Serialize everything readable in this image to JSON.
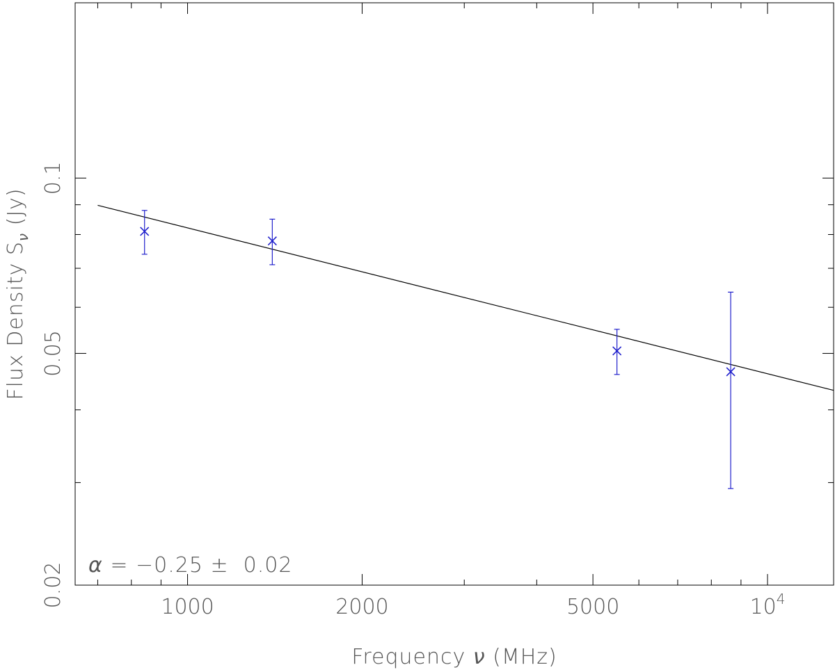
{
  "chart_data": {
    "type": "scatter",
    "xscale": "log",
    "yscale": "log",
    "xlim": [
      640,
      13000
    ],
    "ylim": [
      0.02,
      0.2
    ],
    "xlabel_text": "Frequency ",
    "xlabel_symbol": "ν",
    "xlabel_unit": " (MHz)",
    "ylabel_text": "Flux Density S",
    "ylabel_sub": "ν",
    "ylabel_unit": " (Jy)",
    "x_tick_labels": [
      {
        "value": 1000,
        "label": "1000"
      },
      {
        "value": 2000,
        "label": "2000"
      },
      {
        "value": 5000,
        "label": "5000"
      },
      {
        "value": 10000,
        "label": "10",
        "sup": "4"
      }
    ],
    "x_minor_ticks": [
      700,
      800,
      900,
      3000,
      4000,
      6000,
      7000,
      8000,
      9000
    ],
    "y_tick_labels": [
      {
        "value": 0.1,
        "label": "0.1"
      },
      {
        "value": 0.05,
        "label": "0.05"
      },
      {
        "value": 0.02,
        "label": "0.02"
      }
    ],
    "y_minor_ticks": [
      0.03,
      0.04,
      0.06,
      0.07,
      0.08,
      0.09
    ],
    "points": [
      {
        "x": 843,
        "y": 0.081,
        "err": 0.007
      },
      {
        "x": 1400,
        "y": 0.078,
        "err": 0.007
      },
      {
        "x": 5500,
        "y": 0.0505,
        "err": 0.0045
      },
      {
        "x": 8640,
        "y": 0.0465,
        "err": 0.0172
      }
    ],
    "fit": {
      "alpha": -0.25,
      "line": [
        {
          "x": 700,
          "y": 0.0898
        },
        {
          "x": 13000,
          "y": 0.0432
        }
      ]
    },
    "annotation": {
      "symbol": "α",
      "text": " = −0.25 ±  0.02"
    },
    "colors": {
      "points": "#1f1fcc",
      "fit_line": "#000000",
      "axes": "#000000",
      "text": "#555555"
    }
  }
}
